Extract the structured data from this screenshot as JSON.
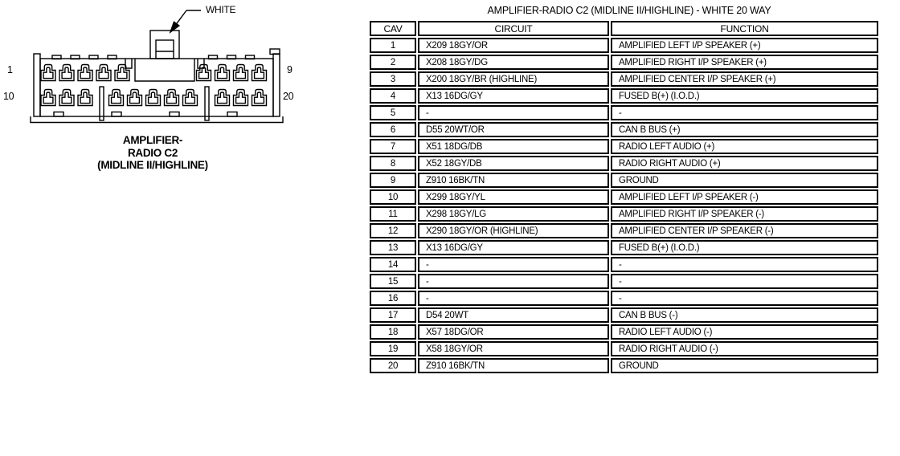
{
  "diagram": {
    "connector_color_label": "WHITE",
    "pin_labels": {
      "top_left": "1",
      "top_right": "9",
      "bottom_left": "10",
      "bottom_right": "20"
    },
    "caption_lines": [
      "AMPLIFIER-",
      "RADIO C2",
      "(MIDLINE II/HIGHLINE)"
    ]
  },
  "table": {
    "title": "AMPLIFIER-RADIO C2 (MIDLINE II/HIGHLINE) - WHITE 20 WAY",
    "headers": [
      "CAV",
      "CIRCUIT",
      "FUNCTION"
    ],
    "rows": [
      {
        "cav": "1",
        "circuit": "X209 18GY/OR",
        "function": "AMPLIFIED LEFT I/P SPEAKER (+)"
      },
      {
        "cav": "2",
        "circuit": "X208 18GY/DG",
        "function": "AMPLIFIED RIGHT I/P SPEAKER (+)"
      },
      {
        "cav": "3",
        "circuit": "X200 18GY/BR (HIGHLINE)",
        "function": "AMPLIFIED CENTER I/P SPEAKER (+)"
      },
      {
        "cav": "4",
        "circuit": "X13 16DG/GY",
        "function": "FUSED B(+) (I.O.D.)"
      },
      {
        "cav": "5",
        "circuit": "-",
        "function": "-"
      },
      {
        "cav": "6",
        "circuit": "D55 20WT/OR",
        "function": "CAN B BUS (+)"
      },
      {
        "cav": "7",
        "circuit": "X51 18DG/DB",
        "function": "RADIO LEFT AUDIO (+)"
      },
      {
        "cav": "8",
        "circuit": "X52 18GY/DB",
        "function": "RADIO RIGHT AUDIO (+)"
      },
      {
        "cav": "9",
        "circuit": "Z910 16BK/TN",
        "function": "GROUND"
      },
      {
        "cav": "10",
        "circuit": "X299 18GY/YL",
        "function": "AMPLIFIED LEFT I/P SPEAKER (-)"
      },
      {
        "cav": "11",
        "circuit": "X298 18GY/LG",
        "function": "AMPLIFIED RIGHT I/P SPEAKER (-)"
      },
      {
        "cav": "12",
        "circuit": "X290 18GY/OR (HIGHLINE)",
        "function": "AMPLIFIED CENTER I/P SPEAKER (-)"
      },
      {
        "cav": "13",
        "circuit": "X13 16DG/GY",
        "function": "FUSED B(+) (I.O.D.)"
      },
      {
        "cav": "14",
        "circuit": "-",
        "function": "-"
      },
      {
        "cav": "15",
        "circuit": "-",
        "function": "-"
      },
      {
        "cav": "16",
        "circuit": "-",
        "function": "-"
      },
      {
        "cav": "17",
        "circuit": "D54 20WT",
        "function": "CAN B BUS (-)"
      },
      {
        "cav": "18",
        "circuit": "X57 18DG/OR",
        "function": "RADIO LEFT AUDIO (-)"
      },
      {
        "cav": "19",
        "circuit": "X58 18GY/OR",
        "function": "RADIO RIGHT AUDIO (-)"
      },
      {
        "cav": "20",
        "circuit": "Z910 16BK/TN",
        "function": "GROUND"
      }
    ]
  },
  "colors": {
    "ink": "#000000",
    "background": "#ffffff"
  }
}
